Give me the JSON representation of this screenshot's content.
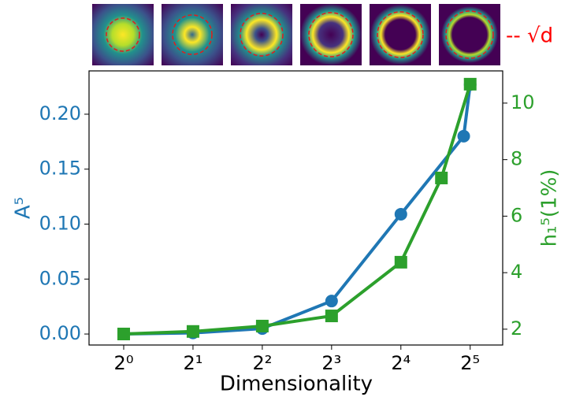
{
  "chart_data": {
    "type": "line",
    "xlabel": "Dimensionality",
    "ylabel": "A⁵",
    "y2label": "h₁⁵(1%)",
    "inset_legend": "-- √d",
    "xscale": "log2",
    "xlim": [
      0.707,
      44.3
    ],
    "xticks": [
      {
        "value": 1,
        "label": "2⁰"
      },
      {
        "value": 2,
        "label": "2¹"
      },
      {
        "value": 4,
        "label": "2²"
      },
      {
        "value": 8,
        "label": "2³"
      },
      {
        "value": 16,
        "label": "2⁴"
      },
      {
        "value": 32,
        "label": "2⁵"
      }
    ],
    "ylim": [
      -0.01,
      0.2394
    ],
    "yticks": [
      {
        "value": 0,
        "label": "0.00"
      },
      {
        "value": 0.05,
        "label": "0.05"
      },
      {
        "value": 0.1,
        "label": "0.10"
      },
      {
        "value": 0.15,
        "label": "0.15"
      },
      {
        "value": 0.2,
        "label": "0.20"
      }
    ],
    "y2lim": [
      1.44,
      11.14
    ],
    "y2ticks": [
      2,
      4,
      6,
      8,
      10
    ],
    "series": [
      {
        "name": "A⁵",
        "color": "#1f77b4",
        "marker": "circle",
        "axis": "y",
        "x": [
          1,
          2,
          4,
          8,
          16,
          30,
          32
        ],
        "values": [
          0.0,
          0.001,
          0.005,
          0.03,
          0.109,
          0.18,
          0.227
        ]
      },
      {
        "name": "h₁⁵(1%)",
        "color": "#2ca02c",
        "marker": "square",
        "axis": "y2",
        "x": [
          1,
          2,
          4,
          8,
          16,
          24,
          32
        ],
        "values": [
          1.83,
          1.92,
          2.11,
          2.47,
          4.37,
          7.35,
          10.67
        ]
      }
    ]
  }
}
